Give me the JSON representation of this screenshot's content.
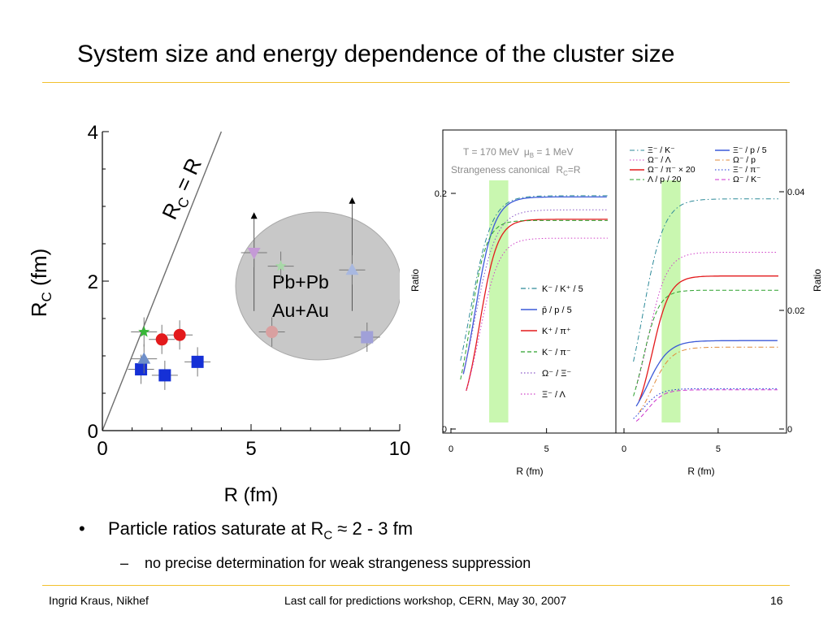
{
  "slide": {
    "title": "System size and energy dependence of the cluster size",
    "bullet_main": "Particle ratios saturate at R",
    "bullet_sub_c": "C",
    "bullet_tail": " ≈ 2 - 3 fm",
    "sub_bullet": "no precise determination for weak strangeness suppression",
    "footer_left": "Ingrid Kraus, Nikhef",
    "footer_center": "Last call for predictions workshop, CERN, May 30, 2007",
    "page_number": "16"
  },
  "colors": {
    "accent_rule": "#f2c12e",
    "red": "#e31a1c",
    "blue": "#1530d6",
    "green_band": "#c9f7b0"
  },
  "chart_data": [
    {
      "type": "scatter",
      "xlabel": "R (fm)",
      "ylabel": "R_C (fm)",
      "xlim": [
        0,
        10
      ],
      "ylim": [
        0,
        4
      ],
      "x_ticks": [
        "0",
        "5",
        "10"
      ],
      "y_ticks": [
        "0",
        "2",
        "4"
      ],
      "reference_line": {
        "label": "R_C = R",
        "slope": 1
      },
      "highlight_region": {
        "label_lines": [
          "Pb+Pb",
          "Au+Au"
        ]
      },
      "series": [
        {
          "marker": "circle",
          "color": "#e31a1c",
          "points": [
            [
              2.0,
              1.22
            ],
            [
              2.6,
              1.28
            ]
          ]
        },
        {
          "marker": "square",
          "color": "#1530d6",
          "points": [
            [
              1.3,
              0.82
            ],
            [
              2.1,
              0.74
            ],
            [
              3.2,
              0.92
            ]
          ]
        },
        {
          "marker": "star",
          "color": "#38b838",
          "points": [
            [
              1.4,
              1.32
            ]
          ]
        },
        {
          "marker": "triangle",
          "color": "#6f8fc9",
          "points": [
            [
              1.4,
              0.96
            ]
          ]
        },
        {
          "marker": "triangle-down",
          "color": "#c49ad6",
          "points": [
            [
              5.1,
              2.38
            ]
          ]
        },
        {
          "marker": "star",
          "color": "#a8d8a8",
          "points": [
            [
              6.0,
              2.2
            ]
          ]
        },
        {
          "marker": "circle",
          "color": "#d9a0a0",
          "points": [
            [
              5.7,
              1.32
            ]
          ]
        },
        {
          "marker": "triangle",
          "color": "#a8b8e0",
          "points": [
            [
              8.4,
              2.15
            ]
          ]
        },
        {
          "marker": "square",
          "color": "#a0a0d8",
          "points": [
            [
              8.9,
              1.25
            ]
          ]
        }
      ],
      "lower_limit_arrows": [
        [
          5.1,
          2.9
        ],
        [
          8.4,
          3.1
        ]
      ]
    },
    {
      "type": "line",
      "xlabel": "R (fm)",
      "ylabel": "Ratio",
      "xlim": [
        0,
        8.5
      ],
      "ylim": [
        0,
        0.24
      ],
      "y_ticks": [
        "0",
        "0.2"
      ],
      "x_ticks": [
        "0",
        "5"
      ],
      "annotation": [
        "T = 170 MeV",
        "μ",
        "B",
        " = 1 MeV",
        "Strangeness canonical",
        "R",
        "C",
        "=R"
      ],
      "band": [
        2.0,
        3.0
      ],
      "series": [
        {
          "name": "K⁻ / K⁺ / 5",
          "style": "dash-dot",
          "color": "#2d8a99",
          "asymptote": 0.198
        },
        {
          "name": "p̄ / p / 5",
          "style": "solid",
          "color": "#3c5ad8",
          "asymptote": 0.197
        },
        {
          "name": "K⁺ / π⁺",
          "style": "solid",
          "color": "#e31a1c",
          "asymptote": 0.178
        },
        {
          "name": "K⁻ / π⁻",
          "style": "dashed",
          "color": "#2ca02c",
          "asymptote": 0.177
        },
        {
          "name": "Ω⁻ / Ξ⁻",
          "style": "dotted",
          "color": "#8a58c8",
          "asymptote": 0.186
        },
        {
          "name": "Ξ⁻ / Λ",
          "style": "dotted",
          "color": "#d040c8",
          "asymptote": 0.162
        }
      ]
    },
    {
      "type": "line",
      "xlabel": "R (fm)",
      "ylabel": "Ratio",
      "xlim": [
        0,
        8.5
      ],
      "ylim": [
        0,
        0.04
      ],
      "y_ticks": [
        "0",
        "0.02",
        "0.04"
      ],
      "x_ticks": [
        "0",
        "5"
      ],
      "band": [
        2.0,
        3.0
      ],
      "series": [
        {
          "name": "Ξ⁻ / K⁻",
          "style": "dash-dot",
          "color": "#2d8a99",
          "asymptote": 0.0388
        },
        {
          "name": "Ω⁻ / Λ",
          "style": "dotted",
          "color": "#d040c8",
          "asymptote": 0.0298
        },
        {
          "name": "Ω⁻ / π⁻ × 20",
          "style": "solid",
          "color": "#e31a1c",
          "asymptote": 0.0258
        },
        {
          "name": "Λ / p / 20",
          "style": "dashed",
          "color": "#2ca02c",
          "asymptote": 0.0234
        },
        {
          "name": "Ξ⁻ / p / 5",
          "style": "solid",
          "color": "#3c5ad8",
          "asymptote": 0.0149
        },
        {
          "name": "Ω⁻ / p",
          "style": "dash-dot",
          "color": "#e08a3a",
          "asymptote": 0.0138
        },
        {
          "name": "Ξ⁻ / π⁻",
          "style": "dotted",
          "color": "#1530d6",
          "asymptote": 0.0068
        },
        {
          "name": "Ω⁻ / K⁻",
          "style": "dashed",
          "color": "#cc33cc",
          "asymptote": 0.0066
        }
      ]
    }
  ]
}
